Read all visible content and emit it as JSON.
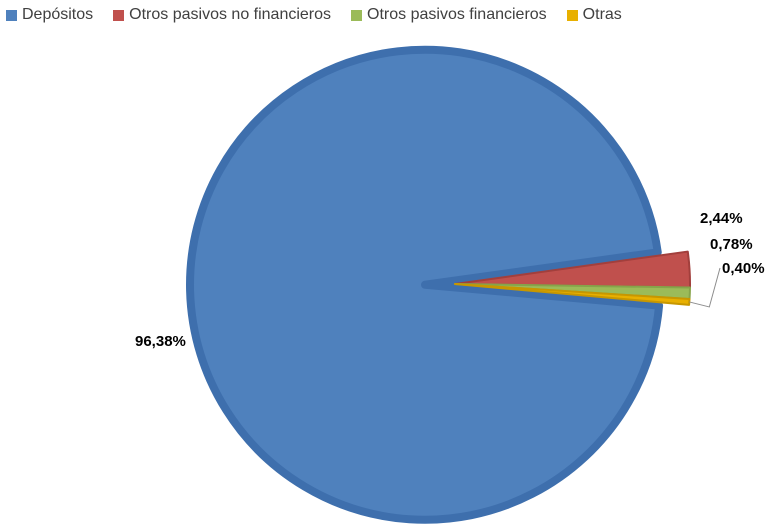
{
  "chart_data": {
    "type": "pie",
    "title": "",
    "legend_position": "top-left",
    "categories": [
      "Depósitos",
      "Otros pasivos no financieros",
      "Otros pasivos financieros",
      "Otras"
    ],
    "values": [
      96.38,
      2.44,
      0.78,
      0.4
    ],
    "labels": [
      "96,38%",
      "2,44%",
      "0,78%",
      "0,40%"
    ],
    "colors": [
      "#4F81BD",
      "#C0504D",
      "#9BBB59",
      "#E8B000"
    ],
    "exploded_slices": [
      "Depósitos"
    ]
  }
}
